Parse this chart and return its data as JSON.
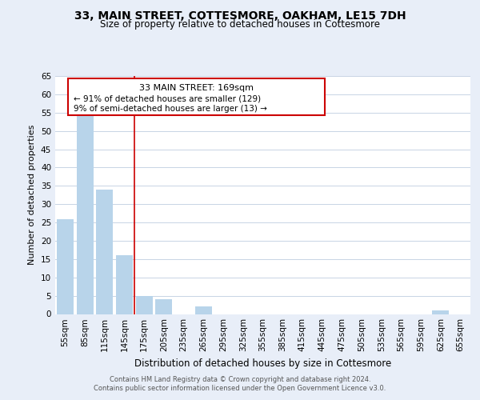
{
  "title": "33, MAIN STREET, COTTESMORE, OAKHAM, LE15 7DH",
  "subtitle": "Size of property relative to detached houses in Cottesmore",
  "xlabel": "Distribution of detached houses by size in Cottesmore",
  "ylabel": "Number of detached properties",
  "bar_labels": [
    "55sqm",
    "85sqm",
    "115sqm",
    "145sqm",
    "175sqm",
    "205sqm",
    "235sqm",
    "265sqm",
    "295sqm",
    "325sqm",
    "355sqm",
    "385sqm",
    "415sqm",
    "445sqm",
    "475sqm",
    "505sqm",
    "535sqm",
    "565sqm",
    "595sqm",
    "625sqm",
    "655sqm"
  ],
  "bar_values": [
    26,
    54,
    34,
    16,
    5,
    4,
    0,
    2,
    0,
    0,
    0,
    0,
    0,
    0,
    0,
    0,
    0,
    0,
    0,
    1,
    0
  ],
  "bar_color": "#b8d4ea",
  "property_line_label": "33 MAIN STREET: 169sqm",
  "annotation_line1": "← 91% of detached houses are smaller (129)",
  "annotation_line2": "9% of semi-detached houses are larger (13) →",
  "vline_bin_index": 4,
  "ylim_min": 0,
  "ylim_max": 65,
  "yticks": [
    0,
    5,
    10,
    15,
    20,
    25,
    30,
    35,
    40,
    45,
    50,
    55,
    60,
    65
  ],
  "footer_line1": "Contains HM Land Registry data © Crown copyright and database right 2024.",
  "footer_line2": "Contains public sector information licensed under the Open Government Licence v3.0.",
  "bg_color": "#e8eef8",
  "plot_bg_color": "#ffffff",
  "grid_color": "#c8d4e4",
  "annotation_box_color": "#ffffff",
  "annotation_box_edge": "#cc0000",
  "vline_color": "#cc0000",
  "title_fontsize": 10,
  "subtitle_fontsize": 8.5,
  "ylabel_fontsize": 8,
  "xlabel_fontsize": 8.5,
  "tick_fontsize": 7.5,
  "footer_fontsize": 6,
  "annot_title_fontsize": 8,
  "annot_text_fontsize": 7.5
}
